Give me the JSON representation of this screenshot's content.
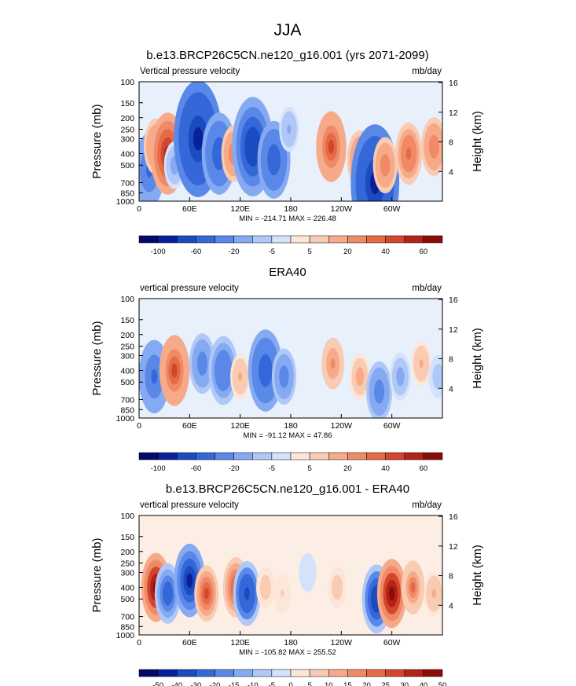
{
  "figure": {
    "title": "JJA"
  },
  "chart_data": [
    {
      "type": "heatmap",
      "title": "b.e13.BRCP26C5CN.ne120_g16.001 (yrs 2071-2099)",
      "subtitle_left": "Vertical pressure velocity",
      "units": "mb/day",
      "ylabel": "Pressure (mb)",
      "ylabel_right": "Height (km)",
      "xticks": [
        "0",
        "60E",
        "120E",
        "180",
        "120W",
        "60W"
      ],
      "yticks": [
        "100",
        "150",
        "200",
        "250",
        "300",
        "400",
        "500",
        "700",
        "850",
        "1000"
      ],
      "yticks_right": [
        "16",
        "12",
        "8",
        "4"
      ],
      "stats": "MIN = -214.71  MAX = 226.48",
      "colorbar_labels": [
        "-100",
        "-60",
        "-20",
        "-5",
        "5",
        "20",
        "40",
        "60"
      ],
      "ylim": [
        1000,
        100
      ],
      "xlim": [
        0,
        360
      ],
      "anomalies": [
        {
          "lon": 12,
          "p": 550,
          "v": -45
        },
        {
          "lon": 20,
          "p": 350,
          "v": 25
        },
        {
          "lon": 34,
          "p": 400,
          "v": 55
        },
        {
          "lon": 42,
          "p": 500,
          "v": -15
        },
        {
          "lon": 70,
          "p": 300,
          "v": -95
        },
        {
          "lon": 95,
          "p": 400,
          "v": -55
        },
        {
          "lon": 112,
          "p": 400,
          "v": 25
        },
        {
          "lon": 135,
          "p": 350,
          "v": -75
        },
        {
          "lon": 160,
          "p": 450,
          "v": -50
        },
        {
          "lon": 178,
          "p": 250,
          "v": -12
        },
        {
          "lon": 228,
          "p": 350,
          "v": 42
        },
        {
          "lon": 262,
          "p": 450,
          "v": 28
        },
        {
          "lon": 280,
          "p": 700,
          "v": -95
        },
        {
          "lon": 292,
          "p": 500,
          "v": 25
        },
        {
          "lon": 320,
          "p": 400,
          "v": 32
        },
        {
          "lon": 350,
          "p": 350,
          "v": 28
        }
      ]
    },
    {
      "type": "heatmap",
      "title": "ERA40",
      "subtitle_left": "vertical pressure velocity",
      "units": "mb/day",
      "ylabel": "Pressure (mb)",
      "ylabel_right": "Height (km)",
      "xticks": [
        "0",
        "60E",
        "120E",
        "180",
        "120W",
        "60W"
      ],
      "yticks": [
        "100",
        "150",
        "200",
        "250",
        "300",
        "400",
        "500",
        "700",
        "850",
        "1000"
      ],
      "yticks_right": [
        "16",
        "12",
        "8",
        "4"
      ],
      "stats": "MIN = -91.12  MAX = 47.86",
      "colorbar_labels": [
        "-100",
        "-60",
        "-20",
        "-5",
        "5",
        "20",
        "40",
        "60"
      ],
      "ylim": [
        1000,
        100
      ],
      "xlim": [
        0,
        360
      ],
      "anomalies": [
        {
          "lon": 18,
          "p": 450,
          "v": -45
        },
        {
          "lon": 42,
          "p": 400,
          "v": 42
        },
        {
          "lon": 75,
          "p": 350,
          "v": -30
        },
        {
          "lon": 100,
          "p": 400,
          "v": -40
        },
        {
          "lon": 120,
          "p": 450,
          "v": 12
        },
        {
          "lon": 150,
          "p": 400,
          "v": -55
        },
        {
          "lon": 172,
          "p": 450,
          "v": -25
        },
        {
          "lon": 230,
          "p": 350,
          "v": 20
        },
        {
          "lon": 262,
          "p": 450,
          "v": 14
        },
        {
          "lon": 285,
          "p": 600,
          "v": -30
        },
        {
          "lon": 310,
          "p": 450,
          "v": -15
        },
        {
          "lon": 335,
          "p": 350,
          "v": 12
        },
        {
          "lon": 355,
          "p": 450,
          "v": -10
        }
      ]
    },
    {
      "type": "heatmap",
      "title": "b.e13.BRCP26C5CN.ne120_g16.001 - ERA40",
      "subtitle_left": "vertical pressure velocity",
      "units": "mb/day",
      "ylabel": "Pressure (mb)",
      "ylabel_right": "Height (km)",
      "xticks": [
        "0",
        "60E",
        "120E",
        "180",
        "120W",
        "60W"
      ],
      "yticks": [
        "100",
        "150",
        "200",
        "250",
        "300",
        "400",
        "500",
        "700",
        "850",
        "1000"
      ],
      "yticks_right": [
        "16",
        "12",
        "8",
        "4"
      ],
      "stats": "MIN = -105.82  MAX = 255.52",
      "colorbar_labels": [
        "-50",
        "-40",
        "-30",
        "-20",
        "-15",
        "-10",
        "-5",
        "0",
        "5",
        "10",
        "15",
        "20",
        "25",
        "30",
        "40",
        "50"
      ],
      "ylim": [
        1000,
        100
      ],
      "xlim": [
        0,
        360
      ],
      "anomalies": [
        {
          "lon": 20,
          "p": 400,
          "v": 40
        },
        {
          "lon": 34,
          "p": 450,
          "v": -30
        },
        {
          "lon": 60,
          "p": 350,
          "v": -45
        },
        {
          "lon": 80,
          "p": 450,
          "v": 25
        },
        {
          "lon": 115,
          "p": 400,
          "v": 30
        },
        {
          "lon": 128,
          "p": 450,
          "v": -35
        },
        {
          "lon": 150,
          "p": 400,
          "v": 8
        },
        {
          "lon": 170,
          "p": 450,
          "v": 5
        },
        {
          "lon": 200,
          "p": 300,
          "v": -5
        },
        {
          "lon": 235,
          "p": 400,
          "v": 8
        },
        {
          "lon": 282,
          "p": 500,
          "v": -40
        },
        {
          "lon": 300,
          "p": 450,
          "v": 40
        },
        {
          "lon": 325,
          "p": 400,
          "v": 22
        },
        {
          "lon": 350,
          "p": 450,
          "v": 12
        }
      ]
    }
  ],
  "colors": {
    "cool": [
      "#04086b",
      "#09209d",
      "#1a4cbf",
      "#3468d9",
      "#5a88e8",
      "#86aaf2",
      "#b0c8f7",
      "#d4e3fb"
    ],
    "warm": [
      "#fce6d8",
      "#f9cbb2",
      "#f6aa89",
      "#f08a66",
      "#e56b46",
      "#d4462c",
      "#b42218",
      "#8a0d0b"
    ]
  }
}
